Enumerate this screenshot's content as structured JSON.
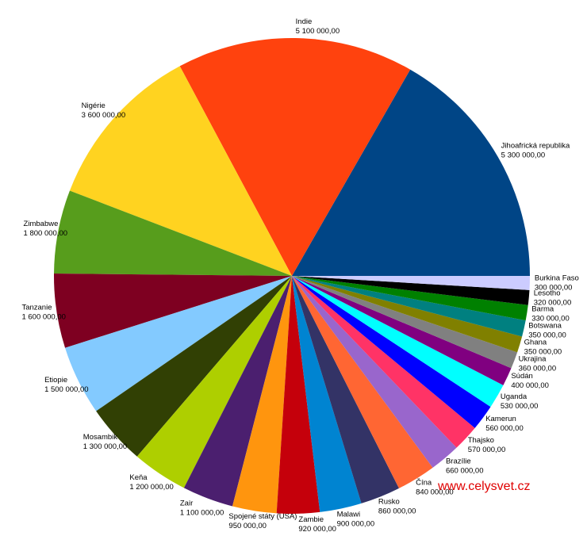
{
  "chart_data": {
    "type": "pie",
    "categories": [
      "Jihoafrická republika",
      "Indie",
      "Nigérie",
      "Zimbabwe",
      "Tanzanie",
      "Etiopie",
      "Mosambik",
      "Keňa",
      "Zair",
      "Spojené státy (USA)",
      "Zambie",
      "Malawi",
      "Rusko",
      "Čína",
      "Brazílie",
      "Thajsko",
      "Kamerun",
      "Uganda",
      "Súdán",
      "Ukrajina",
      "Ghana",
      "Botswana",
      "Barma",
      "Lesotho",
      "Burkina Faso"
    ],
    "values": [
      5300000,
      5100000,
      3600000,
      1800000,
      1600000,
      1500000,
      1300000,
      1200000,
      1100000,
      950000,
      920000,
      900000,
      860000,
      840000,
      660000,
      570000,
      560000,
      530000,
      400000,
      360000,
      350000,
      350000,
      330000,
      320000,
      300000
    ],
    "value_labels": [
      "5 300 000,00",
      "5 100 000,00",
      "3 600 000,00",
      "1 800 000,00",
      "1 600 000,00",
      "1 500 000,00",
      "1 300 000,00",
      "1 200 000,00",
      "1 100 000,00",
      "950 000,00",
      "920 000,00",
      "900 000,00",
      "860 000,00",
      "840 000,00",
      "660 000,00",
      "570 000,00",
      "560 000,00",
      "530 000,00",
      "400 000,00",
      "360 000,00",
      "350 000,00",
      "350 000,00",
      "330 000,00",
      "320 000,00",
      "300 000,00"
    ],
    "colors": [
      "#004586",
      "#ff420e",
      "#ffd320",
      "#579d1c",
      "#7e0021",
      "#83caff",
      "#314004",
      "#aecf00",
      "#4b1f6f",
      "#ff950e",
      "#c5000b",
      "#0084d1",
      "#333366",
      "#ff6633",
      "#9966cc",
      "#ff3366",
      "#0000ff",
      "#00ffff",
      "#800080",
      "#808080",
      "#808000",
      "#008080",
      "#008000",
      "#000000",
      "#ccccff"
    ],
    "watermark": "www.celysvet.cz"
  }
}
